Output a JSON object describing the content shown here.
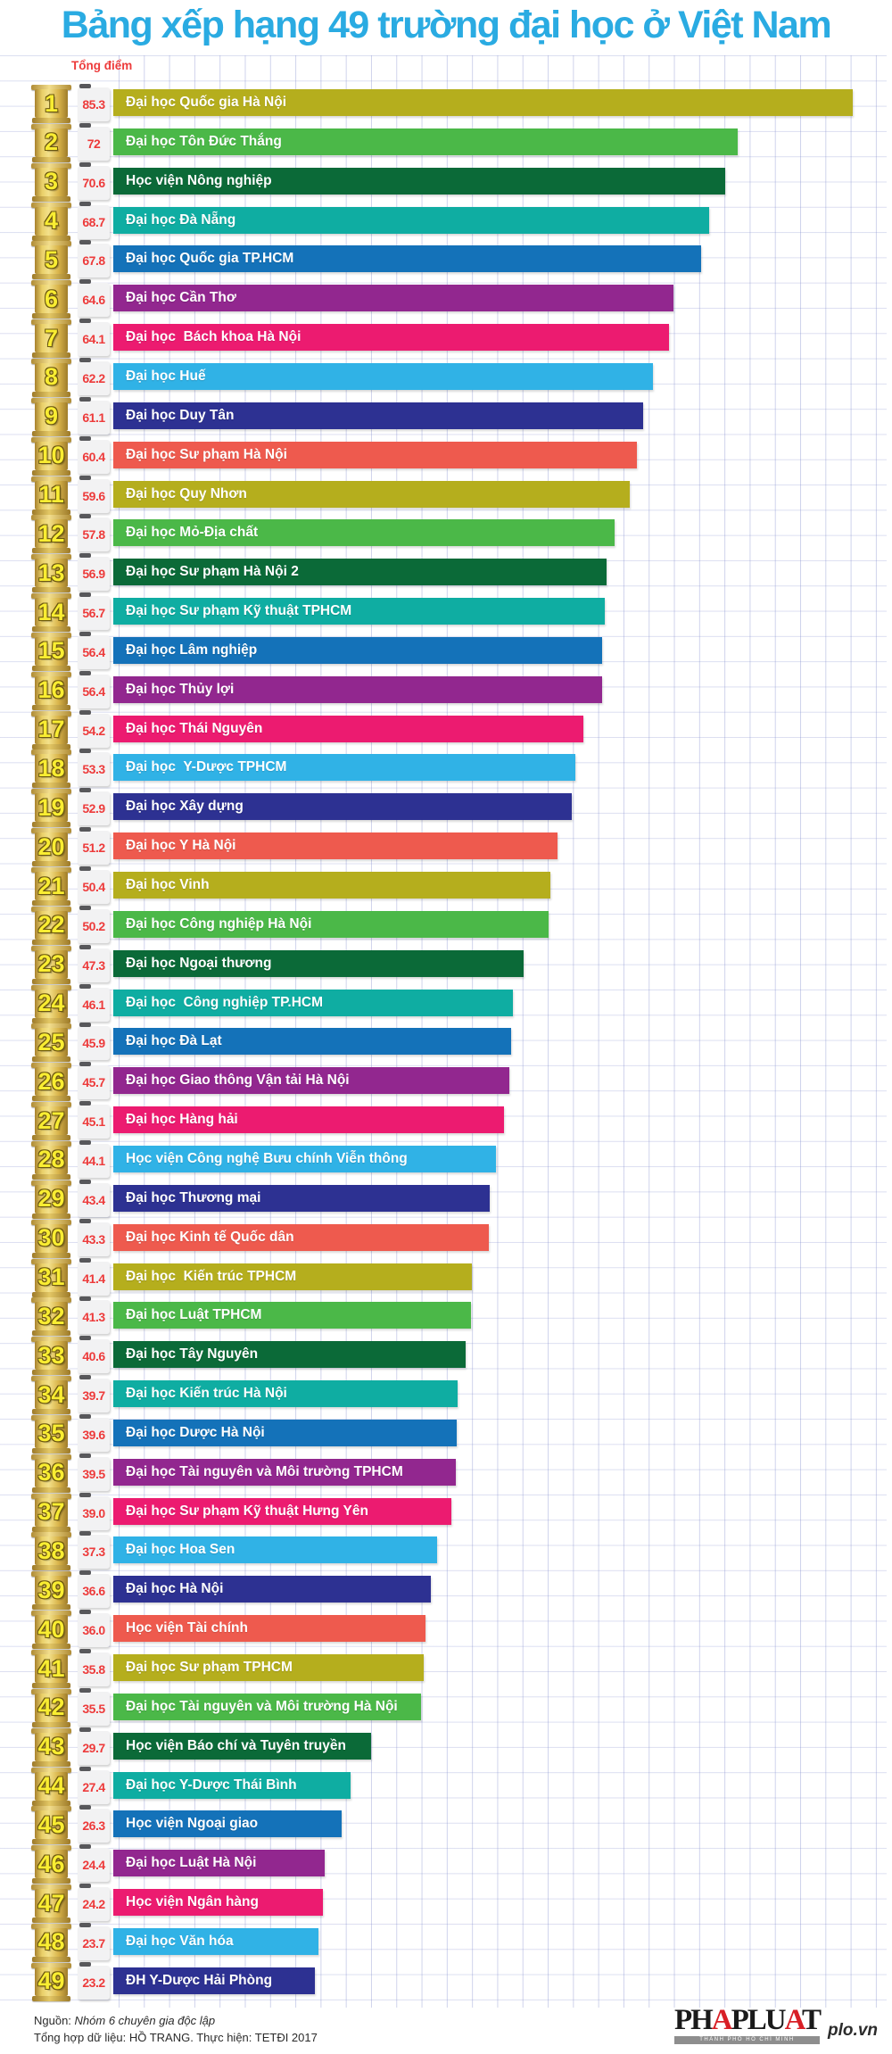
{
  "title": "Bảng xếp hạng 49 trường đại học ở Việt Nam",
  "score_axis_label": "Tổng điểm",
  "footer": {
    "source_prefix": "Nguồn: ",
    "source": "Nhóm 6 chuyên gia độc lập",
    "credits": "Tổng hợp dữ liệu: HỒ TRANG. Thực hiện: TETĐI  2017"
  },
  "logo": {
    "segments": [
      "PH",
      "A",
      "PLU",
      "A",
      "T"
    ],
    "subtext": "THÀNH PHỐ HỒ CHÍ MINH",
    "site": "plo.vn"
  },
  "colors": {
    "title_blue": "#2aabe2",
    "score_red": "#ed3b3b",
    "badge_gold": "#d9b44a",
    "badge_number_yellow": "#f9ed32",
    "palette": {
      "olive": "#b5ae1d",
      "green": "#4bb848",
      "darkgreen": "#0b6a38",
      "teal": "#0fada2",
      "blue": "#1472b9",
      "purple": "#92278f",
      "pink": "#ec1b70",
      "lightblue": "#30b2e6",
      "navy": "#2d3192",
      "coral": "#ee5a4e"
    }
  },
  "chart_data": {
    "type": "bar",
    "orientation": "horizontal",
    "title": "Bảng xếp hạng 49 trường đại học ở Việt Nam",
    "value_label": "Tổng điểm",
    "xlim": [
      0,
      88
    ],
    "grid": true,
    "rows": [
      {
        "rank": 1,
        "label": "Đại học Quốc gia Hà Nội",
        "value": 85.3,
        "display": "85.3",
        "color": "olive"
      },
      {
        "rank": 2,
        "label": "Đại học Tôn Đức Thắng",
        "value": 72,
        "display": "72",
        "color": "green"
      },
      {
        "rank": 3,
        "label": "Học viện Nông nghiệp",
        "value": 70.6,
        "display": "70.6",
        "color": "darkgreen"
      },
      {
        "rank": 4,
        "label": "Đại học Đà Nẵng",
        "value": 68.7,
        "display": "68.7",
        "color": "teal"
      },
      {
        "rank": 5,
        "label": "Đại học Quốc gia TP.HCM",
        "value": 67.8,
        "display": "67.8",
        "color": "blue"
      },
      {
        "rank": 6,
        "label": "Đại học Cần Thơ",
        "value": 64.6,
        "display": "64.6",
        "color": "purple"
      },
      {
        "rank": 7,
        "label": "Đại học  Bách khoa Hà Nội",
        "value": 64.1,
        "display": "64.1",
        "color": "pink"
      },
      {
        "rank": 8,
        "label": "Đại học Huế",
        "value": 62.2,
        "display": "62.2",
        "color": "lightblue"
      },
      {
        "rank": 9,
        "label": "Đại học Duy Tân",
        "value": 61.1,
        "display": "61.1",
        "color": "navy"
      },
      {
        "rank": 10,
        "label": "Đại học Sư phạm Hà Nội",
        "value": 60.4,
        "display": "60.4",
        "color": "coral"
      },
      {
        "rank": 11,
        "label": "Đại học Quy Nhơn",
        "value": 59.6,
        "display": "59.6",
        "color": "olive"
      },
      {
        "rank": 12,
        "label": "Đại học Mỏ-Địa chất",
        "value": 57.8,
        "display": "57.8",
        "color": "green"
      },
      {
        "rank": 13,
        "label": "Đại học Sư phạm Hà Nội 2",
        "value": 56.9,
        "display": "56.9",
        "color": "darkgreen"
      },
      {
        "rank": 14,
        "label": "Đại học Sư phạm Kỹ thuật TPHCM",
        "value": 56.7,
        "display": "56.7",
        "color": "teal"
      },
      {
        "rank": 15,
        "label": "Đại học Lâm nghiệp",
        "value": 56.4,
        "display": "56.4",
        "color": "blue"
      },
      {
        "rank": 16,
        "label": "Đại học Thủy lợi",
        "value": 56.4,
        "display": "56.4",
        "color": "purple"
      },
      {
        "rank": 17,
        "label": "Đại học Thái Nguyên",
        "value": 54.2,
        "display": "54.2",
        "color": "pink"
      },
      {
        "rank": 18,
        "label": "Đại học  Y-Dược TPHCM",
        "value": 53.3,
        "display": "53.3",
        "color": "lightblue"
      },
      {
        "rank": 19,
        "label": "Đại học Xây dựng",
        "value": 52.9,
        "display": "52.9",
        "color": "navy"
      },
      {
        "rank": 20,
        "label": "Đại học Y Hà Nội",
        "value": 51.2,
        "display": "51.2",
        "color": "coral"
      },
      {
        "rank": 21,
        "label": "Đại học Vinh",
        "value": 50.4,
        "display": "50.4",
        "color": "olive"
      },
      {
        "rank": 22,
        "label": "Đại học Công nghiệp Hà Nội",
        "value": 50.2,
        "display": "50.2",
        "color": "green"
      },
      {
        "rank": 23,
        "label": "Đại học Ngoại thương",
        "value": 47.3,
        "display": "47.3",
        "color": "darkgreen"
      },
      {
        "rank": 24,
        "label": "Đại học  Công nghiệp TP.HCM",
        "value": 46.1,
        "display": "46.1",
        "color": "teal"
      },
      {
        "rank": 25,
        "label": "Đại học Đà Lạt",
        "value": 45.9,
        "display": "45.9",
        "color": "blue"
      },
      {
        "rank": 26,
        "label": "Đại học Giao thông Vận tải Hà Nội",
        "value": 45.7,
        "display": "45.7",
        "color": "purple"
      },
      {
        "rank": 27,
        "label": "Đại học Hàng hải",
        "value": 45.1,
        "display": "45.1",
        "color": "pink"
      },
      {
        "rank": 28,
        "label": "Học viện Công nghệ Bưu chính Viễn thông",
        "value": 44.1,
        "display": "44.1",
        "color": "lightblue"
      },
      {
        "rank": 29,
        "label": "Đại học Thương mại",
        "value": 43.4,
        "display": "43.4",
        "color": "navy"
      },
      {
        "rank": 30,
        "label": "Đại học Kinh tế Quốc dân",
        "value": 43.3,
        "display": "43.3",
        "color": "coral"
      },
      {
        "rank": 31,
        "label": "Đại học  Kiến trúc TPHCM",
        "value": 41.4,
        "display": "41.4",
        "color": "olive"
      },
      {
        "rank": 32,
        "label": "Đại học Luật TPHCM",
        "value": 41.3,
        "display": "41.3",
        "color": "green"
      },
      {
        "rank": 33,
        "label": "Đại học Tây Nguyên",
        "value": 40.6,
        "display": "40.6",
        "color": "darkgreen"
      },
      {
        "rank": 34,
        "label": "Đại học Kiến trúc Hà Nội",
        "value": 39.7,
        "display": "39.7",
        "color": "teal"
      },
      {
        "rank": 35,
        "label": "Đại học Dược Hà Nội",
        "value": 39.6,
        "display": "39.6",
        "color": "blue"
      },
      {
        "rank": 36,
        "label": "Đại học Tài nguyên và Môi trường TPHCM",
        "value": 39.5,
        "display": "39.5",
        "color": "purple"
      },
      {
        "rank": 37,
        "label": "Đại học Sư phạm Kỹ thuật Hưng Yên",
        "value": 39.0,
        "display": "39.0",
        "color": "pink"
      },
      {
        "rank": 38,
        "label": "Đại học Hoa Sen",
        "value": 37.3,
        "display": "37.3",
        "color": "lightblue"
      },
      {
        "rank": 39,
        "label": "Đại học Hà Nội",
        "value": 36.6,
        "display": "36.6",
        "color": "navy"
      },
      {
        "rank": 40,
        "label": "Học viện Tài chính",
        "value": 36.0,
        "display": "36.0",
        "color": "coral"
      },
      {
        "rank": 41,
        "label": "Đại học Sư phạm TPHCM",
        "value": 35.8,
        "display": "35.8",
        "color": "olive"
      },
      {
        "rank": 42,
        "label": "Đại học Tài nguyên và Môi trường Hà Nội",
        "value": 35.5,
        "display": "35.5",
        "color": "green"
      },
      {
        "rank": 43,
        "label": "Học viện Báo chí và Tuyên truyền",
        "value": 29.7,
        "display": "29.7",
        "color": "darkgreen"
      },
      {
        "rank": 44,
        "label": "Đại học Y-Dược Thái Bình",
        "value": 27.4,
        "display": "27.4",
        "color": "teal"
      },
      {
        "rank": 45,
        "label": "Học viện Ngoại giao",
        "value": 26.3,
        "display": "26.3",
        "color": "blue"
      },
      {
        "rank": 46,
        "label": "Đại học Luật Hà Nội",
        "value": 24.4,
        "display": "24.4",
        "color": "purple"
      },
      {
        "rank": 47,
        "label": "Học viện Ngân hàng",
        "value": 24.2,
        "display": "24.2",
        "color": "pink"
      },
      {
        "rank": 48,
        "label": "Đại học Văn hóa",
        "value": 23.7,
        "display": "23.7",
        "color": "lightblue"
      },
      {
        "rank": 49,
        "label": "ĐH Y-Dược Hải Phòng",
        "value": 23.2,
        "display": "23.2",
        "color": "navy"
      }
    ]
  }
}
